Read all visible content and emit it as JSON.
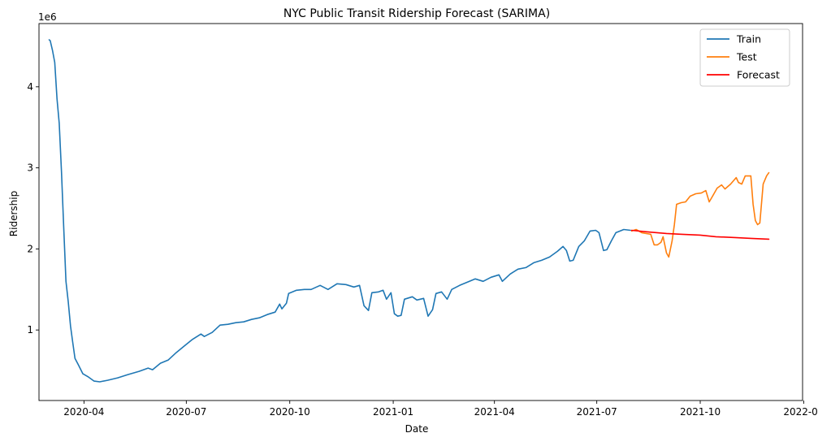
{
  "chart_data": {
    "type": "line",
    "title": "NYC Public Transit Ridership Forecast (SARIMA)",
    "xlabel": "Date",
    "ylabel": "Ridership",
    "y_offset_label": "1e6",
    "x_axis_type": "date",
    "xlim": [
      "2020-02-21",
      "2021-12-31"
    ],
    "ylim": [
      0.13,
      4.78
    ],
    "y_unit": "1e6 riders",
    "x_ticks": [
      "2020-04-01",
      "2020-07-01",
      "2020-10-01",
      "2021-01-01",
      "2021-04-01",
      "2021-07-01",
      "2021-10-01",
      "2022-01-01"
    ],
    "x_tick_labels": [
      "2020-04",
      "2020-07",
      "2020-10",
      "2021-01",
      "2021-04",
      "2021-07",
      "2021-10",
      "2022-01"
    ],
    "y_ticks": [
      1,
      2,
      3,
      4
    ],
    "y_tick_labels": [
      "1",
      "2",
      "3",
      "4"
    ],
    "grid": false,
    "legend_position": "top-right",
    "series": [
      {
        "name": "Train",
        "color": "#1f77b4",
        "points": [
          [
            "2020-03-01",
            4.58
          ],
          [
            "2020-03-02",
            4.57
          ],
          [
            "2020-03-04",
            4.45
          ],
          [
            "2020-03-06",
            4.3
          ],
          [
            "2020-03-08",
            3.85
          ],
          [
            "2020-03-10",
            3.55
          ],
          [
            "2020-03-12",
            2.95
          ],
          [
            "2020-03-14",
            2.25
          ],
          [
            "2020-03-16",
            1.6
          ],
          [
            "2020-03-18",
            1.35
          ],
          [
            "2020-03-20",
            1.05
          ],
          [
            "2020-03-22",
            0.85
          ],
          [
            "2020-03-24",
            0.65
          ],
          [
            "2020-03-27",
            0.57
          ],
          [
            "2020-03-31",
            0.46
          ],
          [
            "2020-04-05",
            0.42
          ],
          [
            "2020-04-10",
            0.37
          ],
          [
            "2020-04-15",
            0.36
          ],
          [
            "2020-04-22",
            0.38
          ],
          [
            "2020-05-01",
            0.41
          ],
          [
            "2020-05-10",
            0.45
          ],
          [
            "2020-05-20",
            0.49
          ],
          [
            "2020-05-28",
            0.53
          ],
          [
            "2020-06-01",
            0.51
          ],
          [
            "2020-06-08",
            0.59
          ],
          [
            "2020-06-15",
            0.63
          ],
          [
            "2020-06-22",
            0.72
          ],
          [
            "2020-06-29",
            0.8
          ],
          [
            "2020-07-06",
            0.88
          ],
          [
            "2020-07-14",
            0.95
          ],
          [
            "2020-07-17",
            0.92
          ],
          [
            "2020-07-24",
            0.97
          ],
          [
            "2020-07-31",
            1.06
          ],
          [
            "2020-08-07",
            1.07
          ],
          [
            "2020-08-14",
            1.09
          ],
          [
            "2020-08-21",
            1.1
          ],
          [
            "2020-08-28",
            1.13
          ],
          [
            "2020-09-04",
            1.15
          ],
          [
            "2020-09-11",
            1.19
          ],
          [
            "2020-09-18",
            1.22
          ],
          [
            "2020-09-22",
            1.32
          ],
          [
            "2020-09-24",
            1.26
          ],
          [
            "2020-09-28",
            1.33
          ],
          [
            "2020-09-30",
            1.45
          ],
          [
            "2020-10-07",
            1.49
          ],
          [
            "2020-10-14",
            1.5
          ],
          [
            "2020-10-20",
            1.5
          ],
          [
            "2020-10-28",
            1.55
          ],
          [
            "2020-11-04",
            1.5
          ],
          [
            "2020-11-12",
            1.57
          ],
          [
            "2020-11-20",
            1.56
          ],
          [
            "2020-11-27",
            1.53
          ],
          [
            "2020-12-02",
            1.55
          ],
          [
            "2020-12-06",
            1.3
          ],
          [
            "2020-12-10",
            1.24
          ],
          [
            "2020-12-13",
            1.46
          ],
          [
            "2020-12-19",
            1.47
          ],
          [
            "2020-12-23",
            1.49
          ],
          [
            "2020-12-26",
            1.38
          ],
          [
            "2020-12-30",
            1.46
          ],
          [
            "2021-01-02",
            1.2
          ],
          [
            "2021-01-05",
            1.17
          ],
          [
            "2021-01-08",
            1.18
          ],
          [
            "2021-01-11",
            1.38
          ],
          [
            "2021-01-18",
            1.41
          ],
          [
            "2021-01-22",
            1.37
          ],
          [
            "2021-01-28",
            1.39
          ],
          [
            "2021-02-01",
            1.17
          ],
          [
            "2021-02-05",
            1.25
          ],
          [
            "2021-02-08",
            1.45
          ],
          [
            "2021-02-13",
            1.47
          ],
          [
            "2021-02-18",
            1.38
          ],
          [
            "2021-02-22",
            1.5
          ],
          [
            "2021-03-01",
            1.55
          ],
          [
            "2021-03-08",
            1.59
          ],
          [
            "2021-03-15",
            1.63
          ],
          [
            "2021-03-22",
            1.6
          ],
          [
            "2021-03-29",
            1.65
          ],
          [
            "2021-04-05",
            1.68
          ],
          [
            "2021-04-08",
            1.6
          ],
          [
            "2021-04-15",
            1.69
          ],
          [
            "2021-04-22",
            1.75
          ],
          [
            "2021-04-29",
            1.77
          ],
          [
            "2021-05-06",
            1.83
          ],
          [
            "2021-05-13",
            1.86
          ],
          [
            "2021-05-20",
            1.9
          ],
          [
            "2021-05-27",
            1.97
          ],
          [
            "2021-06-01",
            2.03
          ],
          [
            "2021-06-04",
            1.98
          ],
          [
            "2021-06-07",
            1.85
          ],
          [
            "2021-06-10",
            1.86
          ],
          [
            "2021-06-15",
            2.03
          ],
          [
            "2021-06-20",
            2.1
          ],
          [
            "2021-06-25",
            2.22
          ],
          [
            "2021-06-30",
            2.23
          ],
          [
            "2021-07-03",
            2.2
          ],
          [
            "2021-07-07",
            1.98
          ],
          [
            "2021-07-10",
            1.99
          ],
          [
            "2021-07-14",
            2.1
          ],
          [
            "2021-07-18",
            2.2
          ],
          [
            "2021-07-25",
            2.24
          ],
          [
            "2021-07-31",
            2.23
          ]
        ]
      },
      {
        "name": "Test",
        "color": "#ff7f0e",
        "points": [
          [
            "2021-08-01",
            2.22
          ],
          [
            "2021-08-05",
            2.24
          ],
          [
            "2021-08-10",
            2.2
          ],
          [
            "2021-08-14",
            2.19
          ],
          [
            "2021-08-18",
            2.18
          ],
          [
            "2021-08-21",
            2.05
          ],
          [
            "2021-08-24",
            2.05
          ],
          [
            "2021-08-27",
            2.08
          ],
          [
            "2021-08-29",
            2.15
          ],
          [
            "2021-09-01",
            1.95
          ],
          [
            "2021-09-03",
            1.9
          ],
          [
            "2021-09-06",
            2.1
          ],
          [
            "2021-09-08",
            2.3
          ],
          [
            "2021-09-10",
            2.55
          ],
          [
            "2021-09-14",
            2.57
          ],
          [
            "2021-09-18",
            2.58
          ],
          [
            "2021-09-22",
            2.65
          ],
          [
            "2021-09-27",
            2.68
          ],
          [
            "2021-10-02",
            2.69
          ],
          [
            "2021-10-06",
            2.72
          ],
          [
            "2021-10-09",
            2.58
          ],
          [
            "2021-10-12",
            2.65
          ],
          [
            "2021-10-16",
            2.75
          ],
          [
            "2021-10-20",
            2.79
          ],
          [
            "2021-10-23",
            2.74
          ],
          [
            "2021-10-28",
            2.8
          ],
          [
            "2021-11-02",
            2.88
          ],
          [
            "2021-11-04",
            2.82
          ],
          [
            "2021-11-07",
            2.8
          ],
          [
            "2021-11-10",
            2.9
          ],
          [
            "2021-11-15",
            2.9
          ],
          [
            "2021-11-17",
            2.55
          ],
          [
            "2021-11-19",
            2.35
          ],
          [
            "2021-11-21",
            2.3
          ],
          [
            "2021-11-23",
            2.32
          ],
          [
            "2021-11-26",
            2.8
          ],
          [
            "2021-11-29",
            2.9
          ],
          [
            "2021-12-01",
            2.94
          ]
        ]
      },
      {
        "name": "Forecast",
        "color": "#ff0000",
        "points": [
          [
            "2021-08-01",
            2.23
          ],
          [
            "2021-08-15",
            2.21
          ],
          [
            "2021-09-01",
            2.19
          ],
          [
            "2021-09-15",
            2.18
          ],
          [
            "2021-10-01",
            2.17
          ],
          [
            "2021-10-15",
            2.15
          ],
          [
            "2021-11-01",
            2.14
          ],
          [
            "2021-11-15",
            2.13
          ],
          [
            "2021-12-01",
            2.12
          ]
        ]
      }
    ]
  }
}
